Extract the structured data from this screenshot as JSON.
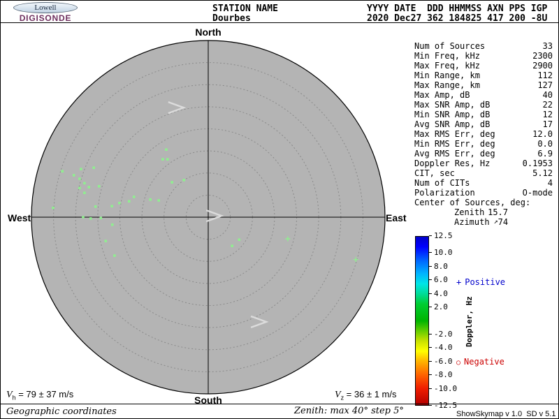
{
  "header": {
    "logo": {
      "line1": "Lowell",
      "line2": "DIGISONDE"
    },
    "line1_left": "STATION NAME",
    "line1_right": "YYYY DATE  DDD HHMMSS AXN PPS IGP",
    "line2_left": "Dourbes",
    "line2_right": "2020 Dec27 362 184825 417 200 -8U"
  },
  "map": {
    "labels": {
      "north": "North",
      "south": "South",
      "west": "West",
      "east": "East"
    }
  },
  "params": {
    "rows": [
      {
        "label": "Num of Sources",
        "value": "33"
      },
      {
        "label": "Min Freq, kHz",
        "value": "2300"
      },
      {
        "label": "Max Freq, kHz",
        "value": "2900"
      },
      {
        "label": "Min Range, km",
        "value": "112"
      },
      {
        "label": "Max Range, km",
        "value": "127"
      },
      {
        "label": "Max Amp, dB",
        "value": "40"
      },
      {
        "label": "Max SNR Amp, dB",
        "value": "22"
      },
      {
        "label": "Min SNR Amp, dB",
        "value": "12"
      },
      {
        "label": "Avg SNR Amp, dB",
        "value": "17"
      },
      {
        "label": "Max RMS Err, deg",
        "value": "12.0"
      },
      {
        "label": "Min RMS Err, deg",
        "value": "0.0"
      },
      {
        "label": "Avg RMS Err, deg",
        "value": "6.9"
      },
      {
        "label": "Doppler Res, Hz",
        "value": "0.1953"
      },
      {
        "label": "CIT, sec",
        "value": "5.12"
      },
      {
        "label": "Num of CITs",
        "value": "4"
      },
      {
        "label": "Polarization",
        "value": "O-mode"
      },
      {
        "label": "Center of Sources, deg:",
        "value": ""
      },
      {
        "label": "Zenith",
        "value": "15.7",
        "indent": true,
        "narrow": true
      },
      {
        "label": "Azimuth",
        "value": "74",
        "indent": true,
        "narrow": true,
        "icon": "↗"
      }
    ]
  },
  "colorbar": {
    "title": "Doppler, Hz",
    "max": 12.5,
    "min": -12.5,
    "ticks": [
      12.5,
      10.0,
      8.0,
      6.0,
      4.0,
      2.0,
      -2.0,
      -4.0,
      -6.0,
      -8.0,
      -10.0,
      -12.5
    ],
    "positive_marker": "+",
    "positive_text": "Positive",
    "negative_marker": "○",
    "negative_text": "Negative",
    "positive_color": "#0000cc",
    "negative_color": "#cc0000"
  },
  "footer": {
    "vh_base": "V",
    "vh_sub": "h",
    "vh_rest": " = 79 ± 37 m/s",
    "vz_base": "V",
    "vz_sub": "z",
    "vz_rest": " = 36 ± 1 m/s",
    "coords_note": "Geographic coordinates",
    "zenith_note": "Zenith: max 40°  step 5°",
    "version": "ShowSkymap v 1.0  SD v 5.1"
  },
  "chart_data": {
    "type": "scatter",
    "title": "Digisonde skymap of reflection sources, Dourbes 2020 Dec27 184825",
    "coordinate_system": "polar skymap, geographic coordinates, zenith angle rings",
    "zenith_max_deg": 40,
    "zenith_step_deg": 5,
    "direction_labels": [
      "North",
      "East",
      "South",
      "West"
    ],
    "plot_bg": "#b4b4b4",
    "ring_color": "#8a8a8a",
    "marker_color": "#90ee90",
    "points_units": "[east_offset_deg, north_offset_deg, marker]",
    "points": [
      [
        -9.5,
        15.3,
        "dot"
      ],
      [
        -10.3,
        13.1,
        "dot"
      ],
      [
        -9.2,
        13.1,
        "dot"
      ],
      [
        -8.2,
        7.9,
        "dot"
      ],
      [
        -5.5,
        8.4,
        "dot"
      ],
      [
        -33.0,
        10.4,
        "dot"
      ],
      [
        -30.4,
        9.5,
        "dot"
      ],
      [
        -28.8,
        10.9,
        "dot"
      ],
      [
        -25.9,
        11.2,
        "dot"
      ],
      [
        -29.1,
        8.7,
        "dot"
      ],
      [
        -28.0,
        7.7,
        "dot"
      ],
      [
        -27.0,
        6.8,
        "dot"
      ],
      [
        -29.1,
        6.6,
        "dot"
      ],
      [
        -24.7,
        7.0,
        "dot"
      ],
      [
        -28.0,
        5.5,
        "dot"
      ],
      [
        -35.1,
        2.1,
        "dot"
      ],
      [
        -25.5,
        2.4,
        "dot"
      ],
      [
        -21.8,
        2.5,
        "dot"
      ],
      [
        -20.1,
        3.2,
        "dot"
      ],
      [
        -17.9,
        3.6,
        "dot"
      ],
      [
        -16.8,
        4.6,
        "dot"
      ],
      [
        -13.1,
        4.0,
        "dot"
      ],
      [
        -11.2,
        3.8,
        "dot"
      ],
      [
        -28.3,
        0.0,
        "dot"
      ],
      [
        -26.6,
        -0.3,
        "dot"
      ],
      [
        -24.3,
        -0.2,
        "dot"
      ],
      [
        -21.7,
        -1.7,
        "dot"
      ],
      [
        -23.2,
        -5.4,
        "dot"
      ],
      [
        -21.2,
        -8.7,
        "dot"
      ],
      [
        5.4,
        -6.5,
        "dot"
      ],
      [
        7.0,
        -5.1,
        "dot"
      ],
      [
        18.0,
        -4.9,
        "plus"
      ],
      [
        33.4,
        -9.6,
        "plus"
      ]
    ],
    "arrow_annotations": [
      [
        -7.3,
        24.8
      ],
      [
        1.3,
        0.3
      ],
      [
        11.4,
        -23.7
      ]
    ]
  }
}
